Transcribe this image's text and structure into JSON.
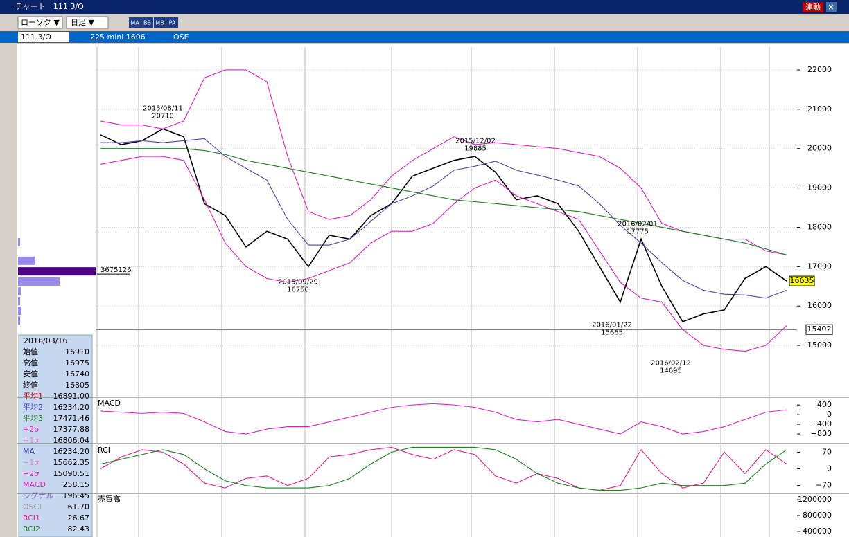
{
  "window": {
    "title": "チャート　111.3/O",
    "link_button": "連動"
  },
  "toolbar": {
    "chart_type": "ローソク ▼",
    "period": "日足 ▼",
    "tools": [
      "MA",
      "BB",
      "MB",
      "PA"
    ]
  },
  "symbol_bar": {
    "code": "111.3/O",
    "name": "225 mini 1606",
    "exchange": "OSE"
  },
  "info_panel": {
    "date": "2016/03/16",
    "rows": [
      [
        "始値",
        "16910"
      ],
      [
        "高値",
        "16975"
      ],
      [
        "安値",
        "16740"
      ],
      [
        "終値",
        "16805"
      ],
      [
        "平均1",
        "16891.00"
      ],
      [
        "平均2",
        "16234.20"
      ],
      [
        "平均3",
        "17471.46"
      ],
      [
        "+2σ",
        "17377.88"
      ],
      [
        "+1σ",
        "16806.04"
      ],
      [
        "MA",
        "16234.20"
      ],
      [
        "−1σ",
        "15662.35"
      ],
      [
        "−2σ",
        "15090.51"
      ],
      [
        "MACD",
        "258.15"
      ],
      [
        "シグナル",
        "196.45"
      ],
      [
        "OSCI",
        "61.70"
      ],
      [
        "RCI1",
        "26.67"
      ],
      [
        "RCI2",
        "82.43"
      ]
    ]
  },
  "chart_data": [
    {
      "type": "line",
      "ylim": [
        13700,
        22580
      ],
      "yticks": [
        15000,
        16000,
        17000,
        18000,
        19000,
        20000,
        21000,
        22000
      ],
      "grid": true,
      "series": [
        {
          "color": "#000000",
          "values": [
            20350,
            20100,
            20200,
            20500,
            20300,
            18600,
            18300,
            17500,
            17900,
            17700,
            17000,
            17800,
            17700,
            18300,
            18600,
            19300,
            19500,
            19700,
            19800,
            19400,
            18700,
            18800,
            18600,
            17900,
            17000,
            16100,
            17700,
            16500,
            15600,
            15800,
            15900,
            16700,
            17000,
            16635
          ]
        },
        {
          "color": "#e020c0",
          "values": [
            20700,
            20600,
            20600,
            20500,
            20700,
            21800,
            22000,
            22000,
            21700,
            19800,
            18400,
            18200,
            18300,
            18700,
            19300,
            19700,
            20000,
            20300,
            20100,
            20150,
            20100,
            20050,
            20000,
            19900,
            19800,
            19500,
            19000,
            18100,
            17900,
            17800,
            17700,
            17700,
            17400,
            17300
          ]
        },
        {
          "color": "#4848a8",
          "values": [
            20150,
            20150,
            20200,
            20150,
            20200,
            20250,
            19800,
            19500,
            19200,
            18200,
            17550,
            17550,
            17700,
            18150,
            18600,
            18800,
            19050,
            19450,
            19550,
            19680,
            19450,
            19330,
            19200,
            19050,
            18600,
            18050,
            17600,
            17100,
            16650,
            16400,
            16300,
            16280,
            16200,
            16400
          ]
        },
        {
          "color": "#e020c0",
          "values": [
            19600,
            19700,
            19800,
            19800,
            19700,
            18700,
            17600,
            17000,
            16700,
            16600,
            16700,
            16900,
            17100,
            17600,
            17900,
            17900,
            18100,
            18600,
            19000,
            19200,
            18800,
            18600,
            18400,
            18200,
            17400,
            16600,
            16200,
            16100,
            15400,
            15000,
            14900,
            14850,
            15000,
            15500
          ]
        },
        {
          "color": "#1f7a1f",
          "values": [
            20000,
            20000,
            20000,
            20000,
            20000,
            19950,
            19850,
            19700,
            19600,
            19500,
            19400,
            19300,
            19200,
            19100,
            19000,
            18900,
            18800,
            18700,
            18650,
            18600,
            18550,
            18500,
            18450,
            18400,
            18300,
            18200,
            18100,
            18000,
            17900,
            17800,
            17700,
            17600,
            17450,
            17300
          ]
        }
      ],
      "last_price": 16635,
      "reference_line": 15402,
      "annotations": [
        {
          "date": "2015/08/11",
          "value": 20710
        },
        {
          "date": "2015/09/29",
          "value": 16750
        },
        {
          "date": "2015/12/02",
          "value": 19885
        },
        {
          "date": "2016/01/22",
          "value": 15665
        },
        {
          "date": "2016/02/01",
          "value": 17775
        },
        {
          "date": "2016/02/12",
          "value": 14695
        }
      ],
      "volume_profile": {
        "prices": [
          17620,
          17150,
          16880,
          16620,
          16370,
          16125,
          15880,
          15630
        ],
        "values": [
          100000,
          820000,
          3675126,
          1970000,
          130000,
          100000,
          160000,
          100000
        ]
      }
    },
    {
      "type": "line",
      "title": "MACD",
      "ylim": [
        -1170,
        690
      ],
      "yticks": [
        400,
        0,
        {
          "value": -400,
          "label": "−400"
        },
        {
          "value": -800,
          "label": "−800"
        }
      ],
      "series": [
        {
          "color": "#e020c0",
          "values": [
            150,
            100,
            50,
            100,
            50,
            -300,
            -700,
            -800,
            -600,
            -500,
            -500,
            -300,
            -100,
            100,
            300,
            400,
            450,
            400,
            300,
            100,
            -200,
            -300,
            -200,
            -400,
            -600,
            -800,
            -300,
            -500,
            -800,
            -700,
            -500,
            -200,
            100,
            200
          ]
        }
      ]
    },
    {
      "type": "line",
      "title": "RCI",
      "ylim": [
        -100,
        100
      ],
      "yticks": [
        70,
        0,
        {
          "value": -70,
          "label": "−70"
        }
      ],
      "series": [
        {
          "color": "#e0208a",
          "values": [
            0,
            50,
            80,
            70,
            20,
            -60,
            -80,
            -40,
            -30,
            -70,
            -40,
            50,
            60,
            80,
            90,
            60,
            40,
            80,
            60,
            -30,
            -60,
            -20,
            -40,
            -80,
            -90,
            -70,
            80,
            -20,
            -80,
            -60,
            70,
            -20,
            80,
            20
          ]
        },
        {
          "color": "#208020",
          "values": [
            20,
            40,
            60,
            80,
            60,
            0,
            -50,
            -70,
            -80,
            -80,
            -80,
            -70,
            -40,
            20,
            70,
            90,
            90,
            90,
            90,
            80,
            40,
            -20,
            -60,
            -80,
            -90,
            -90,
            -80,
            -60,
            -70,
            -70,
            -70,
            -60,
            20,
            80
          ]
        }
      ]
    },
    {
      "type": "volume",
      "title": "売買高",
      "ylim": [
        260000,
        1340000
      ],
      "yticks": [
        1200000,
        800000,
        400000
      ]
    }
  ]
}
